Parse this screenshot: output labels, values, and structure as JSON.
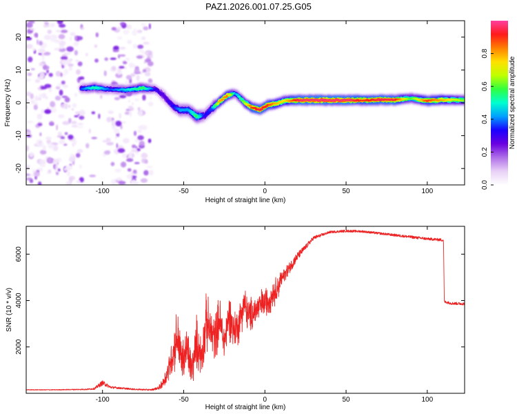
{
  "title": "PAZ1.2026.001.07.25.G05",
  "chart_data": [
    {
      "type": "heatmap",
      "name": "spectrogram",
      "xlabel": "Height of straight line (km)",
      "ylabel": "Frequency (Hz)",
      "xlim": [
        -147,
        123
      ],
      "ylim": [
        -25,
        25
      ],
      "xticks": [
        -100,
        -50,
        0,
        50,
        100
      ],
      "yticks": [
        -20,
        -10,
        0,
        10,
        20
      ],
      "colorbar": {
        "label": "Normalized spectral amplitude",
        "range": [
          0,
          1
        ],
        "ticks": [
          "0.0",
          "0.2",
          "0.4",
          "0.6",
          "0.8"
        ],
        "colormap": [
          "#ffffff",
          "#e8d0f6",
          "#b070e8",
          "#6a00e0",
          "#1a00ff",
          "#00a0ff",
          "#00ffd0",
          "#30ff40",
          "#c0ff00",
          "#ffe000",
          "#ff8000",
          "#ff1a1a",
          "#ff40a0"
        ]
      },
      "ridge_track": {
        "height_km": [
          -113,
          -105,
          -95,
          -85,
          -75,
          -67,
          -62,
          -57,
          -52,
          -47,
          -42,
          -37,
          -33,
          -28,
          -23,
          -18,
          -13,
          -8,
          -3,
          2,
          7,
          12,
          20,
          30,
          40,
          50,
          60,
          70,
          80,
          90,
          100,
          110,
          123
        ],
        "frequency_hz": [
          4.3,
          4.6,
          4.1,
          3.9,
          4.5,
          4.1,
          2.0,
          -0.8,
          -2.3,
          -2.2,
          -4.2,
          -3.8,
          -1.9,
          0.3,
          2.3,
          2.8,
          0.3,
          -1.5,
          -2.1,
          -0.6,
          -0.3,
          0.6,
          0.8,
          0.8,
          0.8,
          0.8,
          0.8,
          0.9,
          0.8,
          1.4,
          0.6,
          0.9,
          0.8
        ],
        "peak_amplitude": [
          0.35,
          0.5,
          0.35,
          0.45,
          0.55,
          0.3,
          0.25,
          0.3,
          0.4,
          0.4,
          0.55,
          0.3,
          0.35,
          0.75,
          0.8,
          0.4,
          0.6,
          0.85,
          0.9,
          0.85,
          0.75,
          0.7,
          0.9,
          0.95,
          0.95,
          0.95,
          0.85,
          0.9,
          0.9,
          0.55,
          0.85,
          0.75,
          0.6
        ]
      },
      "noise_region_km": [
        -147,
        -70
      ]
    },
    {
      "type": "line",
      "name": "snr-profile",
      "xlabel": "Height of straight line (km)",
      "ylabel": "SNR (10 * v/v)",
      "xlim": [
        -147,
        123
      ],
      "ylim": [
        0,
        7200
      ],
      "xticks": [
        -100,
        -50,
        0,
        50,
        100
      ],
      "yticks": [
        2000,
        4000,
        6000
      ],
      "line_color": "#ee2222",
      "series": {
        "x": [
          -147,
          -130,
          -110,
          -105,
          -102,
          -100,
          -95,
          -80,
          -70,
          -65,
          -62,
          -60,
          -57,
          -54,
          -51,
          -48,
          -45,
          -42,
          -39,
          -36,
          -34,
          -31,
          -28,
          -25,
          -22,
          -19,
          -16,
          -13,
          -10,
          -7,
          -4,
          -1,
          2,
          5,
          8,
          11,
          14,
          17,
          20,
          25,
          30,
          40,
          50,
          60,
          70,
          80,
          90,
          100,
          108,
          110,
          110.5,
          115,
          123
        ],
        "y": [
          150,
          150,
          170,
          200,
          350,
          450,
          260,
          170,
          150,
          240,
          550,
          900,
          1600,
          2500,
          1300,
          1900,
          1000,
          2200,
          1600,
          3100,
          2700,
          2400,
          3200,
          2200,
          3400,
          2700,
          3000,
          3900,
          3300,
          3500,
          3700,
          3900,
          4000,
          4300,
          4600,
          5000,
          5300,
          5600,
          5900,
          6300,
          6700,
          6950,
          7000,
          6980,
          6900,
          6820,
          6740,
          6660,
          6620,
          6600,
          3950,
          3880,
          3860
        ],
        "noise_amplitude": [
          15,
          15,
          25,
          40,
          90,
          110,
          50,
          30,
          30,
          70,
          180,
          300,
          500,
          750,
          550,
          650,
          450,
          700,
          500,
          750,
          650,
          600,
          650,
          500,
          600,
          500,
          500,
          500,
          450,
          450,
          400,
          400,
          380,
          360,
          330,
          300,
          260,
          220,
          180,
          110,
          80,
          50,
          50,
          50,
          50,
          55,
          60,
          60,
          60,
          60,
          60,
          60,
          60
        ]
      }
    }
  ]
}
